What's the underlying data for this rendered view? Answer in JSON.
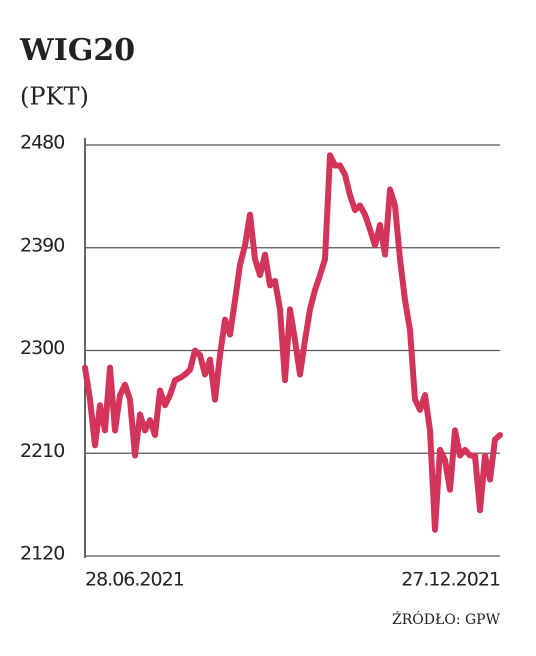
{
  "chart_data": {
    "type": "line",
    "title": "WIG20",
    "subtitle": "(PKT)",
    "source": "ŹRÓDŁO: GPW",
    "categories": [
      "28.06.2021",
      null,
      null,
      null,
      null,
      null,
      null,
      null,
      null,
      null,
      null,
      null,
      null,
      null,
      null,
      null,
      null,
      null,
      null,
      null,
      null,
      null,
      null,
      null,
      null,
      null,
      null,
      null,
      null,
      null,
      null,
      null,
      null,
      null,
      null,
      null,
      null,
      null,
      null,
      null,
      null,
      null,
      null,
      null,
      null,
      null,
      null,
      null,
      null,
      null,
      null,
      null,
      null,
      null,
      null,
      null,
      null,
      null,
      null,
      null,
      null,
      null,
      null,
      null,
      null,
      null,
      null,
      null,
      null,
      null,
      null,
      null,
      null,
      null,
      null,
      null,
      null,
      null,
      null,
      null,
      null,
      null,
      null,
      "27.12.2021"
    ],
    "values": [
      2285,
      2257,
      2217,
      2252,
      2230,
      2285,
      2230,
      2261,
      2270,
      2257,
      2208,
      2244,
      2230,
      2239,
      2226,
      2265,
      2252,
      2261,
      2274,
      2276,
      2279,
      2283,
      2300,
      2296,
      2279,
      2292,
      2257,
      2296,
      2327,
      2314,
      2344,
      2375,
      2392,
      2419,
      2380,
      2366,
      2384,
      2357,
      2361,
      2336,
      2274,
      2336,
      2309,
      2279,
      2309,
      2336,
      2353,
      2366,
      2380,
      2471,
      2462,
      2462,
      2454,
      2436,
      2423,
      2427,
      2419,
      2406,
      2392,
      2410,
      2384,
      2441,
      2427,
      2380,
      2344,
      2318,
      2257,
      2248,
      2261,
      2230,
      2143,
      2213,
      2204,
      2178,
      2230,
      2208,
      2213,
      2208,
      2208,
      2160,
      2208,
      2187,
      2222,
      2226
    ],
    "color": "#d3345a",
    "ylim": [
      2120,
      2480
    ],
    "yticks": [
      2120,
      2210,
      2300,
      2390,
      2480
    ],
    "grid": true
  }
}
